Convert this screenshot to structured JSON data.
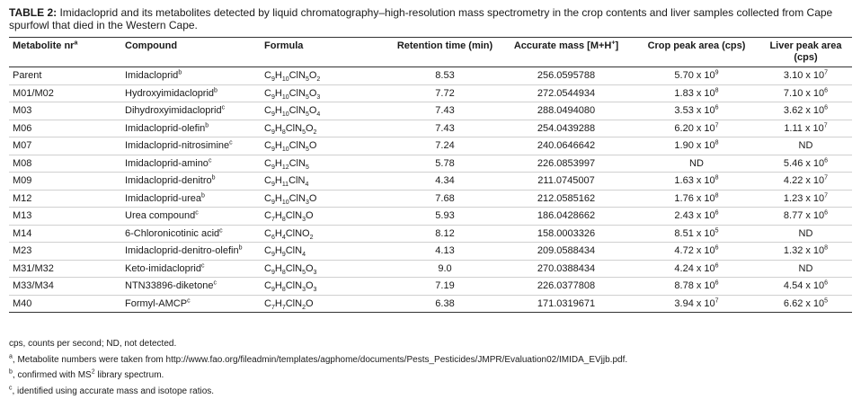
{
  "title": {
    "label": "TABLE 2:",
    "text": "Imidacloprid and its metabolites detected by liquid chromatography–high-resolution mass spectrometry in the crop contents and liver samples collected from Cape spurfowl that died in the Western Cape."
  },
  "table": {
    "header": [
      [
        {
          "t": "Metabolite nr"
        },
        {
          "sup": "a"
        }
      ],
      [
        {
          "t": "Compound"
        }
      ],
      [
        {
          "t": "Formula"
        }
      ],
      [
        {
          "t": "Retention time (min)"
        }
      ],
      [
        {
          "t": "Accurate mass [M+H"
        },
        {
          "sup": "+"
        },
        {
          "t": "]"
        }
      ],
      [
        {
          "t": "Crop peak area (cps)"
        }
      ],
      [
        {
          "t": "Liver peak area (cps)"
        }
      ]
    ],
    "rows": [
      {
        "metabolite": "Parent",
        "compound": [
          {
            "t": "Imidacloprid"
          },
          {
            "sup": "b"
          }
        ],
        "formula": [
          {
            "t": "C"
          },
          {
            "sub": "9"
          },
          {
            "t": "H"
          },
          {
            "sub": "10"
          },
          {
            "t": "ClN"
          },
          {
            "sub": "5"
          },
          {
            "t": "O"
          },
          {
            "sub": "2"
          }
        ],
        "retention": "8.53",
        "mass": "256.0595788",
        "crop": [
          {
            "t": "5.70 x 10"
          },
          {
            "sup": "9"
          }
        ],
        "liver": [
          {
            "t": "3.10 x 10"
          },
          {
            "sup": "7"
          }
        ]
      },
      {
        "metabolite": "M01/M02",
        "compound": [
          {
            "t": "Hydroxyimidacloprid"
          },
          {
            "sup": "b"
          }
        ],
        "formula": [
          {
            "t": "C"
          },
          {
            "sub": "9"
          },
          {
            "t": "H"
          },
          {
            "sub": "10"
          },
          {
            "t": "ClN"
          },
          {
            "sub": "5"
          },
          {
            "t": "O"
          },
          {
            "sub": "3"
          }
        ],
        "retention": "7.72",
        "mass": "272.0544934",
        "crop": [
          {
            "t": "1.83 x 10"
          },
          {
            "sup": "8"
          }
        ],
        "liver": [
          {
            "t": "7.10 x 10"
          },
          {
            "sup": "6"
          }
        ]
      },
      {
        "metabolite": "M03",
        "compound": [
          {
            "t": "Dihydroxyimidacloprid"
          },
          {
            "sup": "c"
          }
        ],
        "formula": [
          {
            "t": "C"
          },
          {
            "sub": "9"
          },
          {
            "t": "H"
          },
          {
            "sub": "10"
          },
          {
            "t": "ClN"
          },
          {
            "sub": "5"
          },
          {
            "t": "O"
          },
          {
            "sub": "4"
          }
        ],
        "retention": "7.43",
        "mass": "288.0494080",
        "crop": [
          {
            "t": "3.53 x 10"
          },
          {
            "sup": "6"
          }
        ],
        "liver": [
          {
            "t": "3.62 x 10"
          },
          {
            "sup": "6"
          }
        ]
      },
      {
        "metabolite": "M06",
        "compound": [
          {
            "t": "Imidacloprid-olefin"
          },
          {
            "sup": "b"
          }
        ],
        "formula": [
          {
            "t": "C"
          },
          {
            "sub": "9"
          },
          {
            "t": "H"
          },
          {
            "sub": "8"
          },
          {
            "t": "ClN"
          },
          {
            "sub": "5"
          },
          {
            "t": "O"
          },
          {
            "sub": "2"
          }
        ],
        "retention": "7.43",
        "mass": "254.0439288",
        "crop": [
          {
            "t": "6.20 x 10"
          },
          {
            "sup": "7"
          }
        ],
        "liver": [
          {
            "t": "1.11 x 10"
          },
          {
            "sup": "7"
          }
        ]
      },
      {
        "metabolite": "M07",
        "compound": [
          {
            "t": "Imidacloprid-nitrosimine"
          },
          {
            "sup": "c"
          }
        ],
        "formula": [
          {
            "t": "C"
          },
          {
            "sub": "9"
          },
          {
            "t": "H"
          },
          {
            "sub": "10"
          },
          {
            "t": "ClN"
          },
          {
            "sub": "5"
          },
          {
            "t": "O"
          }
        ],
        "retention": "7.24",
        "mass": "240.0646642",
        "crop": [
          {
            "t": "1.90 x 10"
          },
          {
            "sup": "8"
          }
        ],
        "liver": [
          {
            "t": "ND"
          }
        ]
      },
      {
        "metabolite": "M08",
        "compound": [
          {
            "t": "Imidacloprid-amino"
          },
          {
            "sup": "c"
          }
        ],
        "formula": [
          {
            "t": "C"
          },
          {
            "sub": "9"
          },
          {
            "t": "H"
          },
          {
            "sub": "12"
          },
          {
            "t": "ClN"
          },
          {
            "sub": "5"
          }
        ],
        "retention": "5.78",
        "mass": "226.0853997",
        "crop": [
          {
            "t": "ND"
          }
        ],
        "liver": [
          {
            "t": "5.46 x 10"
          },
          {
            "sup": "6"
          }
        ]
      },
      {
        "metabolite": "M09",
        "compound": [
          {
            "t": "Imidacloprid-denitro"
          },
          {
            "sup": "b"
          }
        ],
        "formula": [
          {
            "t": "C"
          },
          {
            "sub": "9"
          },
          {
            "t": "H"
          },
          {
            "sub": "11"
          },
          {
            "t": "ClN"
          },
          {
            "sub": "4"
          }
        ],
        "retention": "4.34",
        "mass": "211.0745007",
        "crop": [
          {
            "t": "1.63 x 10"
          },
          {
            "sup": "8"
          }
        ],
        "liver": [
          {
            "t": "4.22 x 10"
          },
          {
            "sup": "7"
          }
        ]
      },
      {
        "metabolite": "M12",
        "compound": [
          {
            "t": "Imidacloprid-urea"
          },
          {
            "sup": "b"
          }
        ],
        "formula": [
          {
            "t": "C"
          },
          {
            "sub": "9"
          },
          {
            "t": "H"
          },
          {
            "sub": "10"
          },
          {
            "t": "ClN"
          },
          {
            "sub": "3"
          },
          {
            "t": "O"
          }
        ],
        "retention": "7.68",
        "mass": "212.0585162",
        "crop": [
          {
            "t": "1.76 x 10"
          },
          {
            "sup": "8"
          }
        ],
        "liver": [
          {
            "t": "1.23 x 10"
          },
          {
            "sup": "7"
          }
        ]
      },
      {
        "metabolite": "M13",
        "compound": [
          {
            "t": "Urea compound"
          },
          {
            "sup": "c"
          }
        ],
        "formula": [
          {
            "t": "C"
          },
          {
            "sub": "7"
          },
          {
            "t": "H"
          },
          {
            "sub": "8"
          },
          {
            "t": "ClN"
          },
          {
            "sub": "3"
          },
          {
            "t": "O"
          }
        ],
        "retention": "5.93",
        "mass": "186.0428662",
        "crop": [
          {
            "t": "2.43 x 10"
          },
          {
            "sup": "6"
          }
        ],
        "liver": [
          {
            "t": "8.77 x 10"
          },
          {
            "sup": "6"
          }
        ]
      },
      {
        "metabolite": "M14",
        "compound": [
          {
            "t": "6-Chloronicotinic acid"
          },
          {
            "sup": "c"
          }
        ],
        "formula": [
          {
            "t": "C"
          },
          {
            "sub": "6"
          },
          {
            "t": "H"
          },
          {
            "sub": "4"
          },
          {
            "t": "ClNO"
          },
          {
            "sub": "2"
          }
        ],
        "retention": "8.12",
        "mass": "158.0003326",
        "crop": [
          {
            "t": "8.51 x 10"
          },
          {
            "sup": "5"
          }
        ],
        "liver": [
          {
            "t": "ND"
          }
        ]
      },
      {
        "metabolite": "M23",
        "compound": [
          {
            "t": "Imidacloprid-denitro-olefin"
          },
          {
            "sup": "b"
          }
        ],
        "formula": [
          {
            "t": "C"
          },
          {
            "sub": "9"
          },
          {
            "t": "H"
          },
          {
            "sub": "9"
          },
          {
            "t": "ClN"
          },
          {
            "sub": "4"
          }
        ],
        "retention": "4.13",
        "mass": "209.0588434",
        "crop": [
          {
            "t": "4.72 x 10"
          },
          {
            "sup": "6"
          }
        ],
        "liver": [
          {
            "t": "1.32 x 10"
          },
          {
            "sup": "8"
          }
        ]
      },
      {
        "metabolite": "M31/M32",
        "compound": [
          {
            "t": "Keto-imidacloprid"
          },
          {
            "sup": "c"
          }
        ],
        "formula": [
          {
            "t": "C"
          },
          {
            "sub": "9"
          },
          {
            "t": "H"
          },
          {
            "sub": "8"
          },
          {
            "t": "ClN"
          },
          {
            "sub": "5"
          },
          {
            "t": "O"
          },
          {
            "sub": "3"
          }
        ],
        "retention": "9.0",
        "mass": "270.0388434",
        "crop": [
          {
            "t": "4.24 x 10"
          },
          {
            "sup": "6"
          }
        ],
        "liver": [
          {
            "t": "ND"
          }
        ]
      },
      {
        "metabolite": "M33/M34",
        "compound": [
          {
            "t": "NTN33896-diketone"
          },
          {
            "sup": "c"
          }
        ],
        "formula": [
          {
            "t": "C"
          },
          {
            "sub": "9"
          },
          {
            "t": "H"
          },
          {
            "sub": "8"
          },
          {
            "t": "ClN"
          },
          {
            "sub": "3"
          },
          {
            "t": "O"
          },
          {
            "sub": "3"
          }
        ],
        "retention": "7.19",
        "mass": "226.0377808",
        "crop": [
          {
            "t": "8.78 x 10"
          },
          {
            "sup": "6"
          }
        ],
        "liver": [
          {
            "t": "4.54 x 10"
          },
          {
            "sup": "6"
          }
        ]
      },
      {
        "metabolite": "M40",
        "compound": [
          {
            "t": "Formyl-AMCP"
          },
          {
            "sup": "c"
          }
        ],
        "formula": [
          {
            "t": "C"
          },
          {
            "sub": "7"
          },
          {
            "t": "H"
          },
          {
            "sub": "7"
          },
          {
            "t": "ClN"
          },
          {
            "sub": "2"
          },
          {
            "t": "O"
          }
        ],
        "retention": "6.38",
        "mass": "171.0319671",
        "crop": [
          {
            "t": "3.94 x 10"
          },
          {
            "sup": "7"
          }
        ],
        "liver": [
          {
            "t": "6.62 x 10"
          },
          {
            "sup": "5"
          }
        ]
      }
    ]
  },
  "footnotes": [
    [
      {
        "t": "cps, counts per second; ND, not detected."
      }
    ],
    [
      {
        "sup": "a"
      },
      {
        "t": ", Metabolite numbers were taken from http://www.fao.org/fileadmin/templates/agphome/documents/Pests_Pesticides/JMPR/Evaluation02/IMIDA_EVjjb.pdf."
      }
    ],
    [
      {
        "sup": "b"
      },
      {
        "t": ", confirmed with MS"
      },
      {
        "sup": "2"
      },
      {
        "t": " library spectrum."
      }
    ],
    [
      {
        "sup": "c"
      },
      {
        "t": ", identified using accurate mass and isotope ratios."
      }
    ]
  ]
}
